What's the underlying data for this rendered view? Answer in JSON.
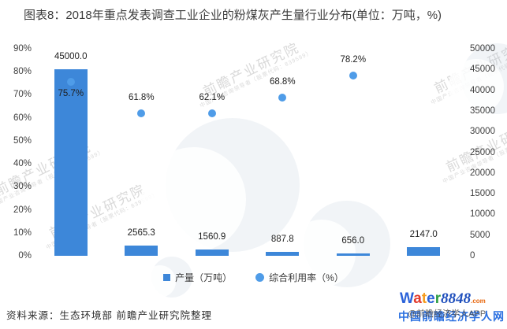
{
  "title": "图表8：2018年重点发表调查工业企业的粉煤灰产生量行业分布(单位：万吨，%)",
  "chart_data": {
    "type": "combo-bar-scatter",
    "categories": [
      "",
      "",
      "",
      "",
      "",
      ""
    ],
    "series": [
      {
        "name": "产量（万吨）",
        "type": "bar",
        "axis": "right",
        "color": "#3d87d9",
        "values": [
          45000.0,
          2565.3,
          1560.9,
          887.8,
          656.0,
          2147.0
        ],
        "labels": [
          "45000.0",
          "2565.3",
          "1560.9",
          "887.8",
          "656.0",
          "2147.0"
        ]
      },
      {
        "name": "综合利用率（%）",
        "type": "scatter",
        "axis": "left",
        "color": "#4f9ce8",
        "values": [
          75.7,
          61.8,
          62.1,
          68.8,
          78.2,
          null
        ],
        "labels": [
          "75.7%",
          "61.8%",
          "62.1%",
          "68.8%",
          "78.2%",
          ""
        ],
        "label_positions": [
          "below",
          "above",
          "above",
          "above",
          "above",
          ""
        ]
      }
    ],
    "left_axis": {
      "min": 0,
      "max": 90,
      "unit": "%",
      "ticks": [
        "0%",
        "10%",
        "20%",
        "30%",
        "40%",
        "50%",
        "60%",
        "70%",
        "80%",
        "90%"
      ]
    },
    "right_axis": {
      "min": 0,
      "max": 50000,
      "ticks": [
        "0",
        "5000",
        "10000",
        "15000",
        "20000",
        "25000",
        "30000",
        "35000",
        "40000",
        "45000",
        "50000"
      ]
    },
    "grid": false,
    "legend_position": "bottom"
  },
  "legend": {
    "items": [
      {
        "label": "产量（万吨）",
        "marker": "square",
        "color": "#3d87d9"
      },
      {
        "label": "综合利用率（%）",
        "marker": "circle",
        "color": "#4f9ce8"
      }
    ]
  },
  "footer": {
    "source": "资料来源：生态环境部 前瞻产业研究院整理"
  },
  "logo": {
    "letters": [
      {
        "ch": "W",
        "color": "#2b62d9"
      },
      {
        "ch": "a",
        "color": "#e23b2e"
      },
      {
        "ch": "t",
        "color": "#f59b1e"
      },
      {
        "ch": "e",
        "color": "#2b62d9"
      },
      {
        "ch": "r",
        "color": "#2e9e44"
      }
    ],
    "number": "8848",
    "number_color": "#1f4fbc",
    "tld": ".com",
    "tld_color": "#e8680f",
    "site_text": "中国前瞻经济学人网",
    "site_color": "#2a6fe0",
    "overlay_text": "@前瞻经济学人APP",
    "overlay_color": "#4a4a4a"
  },
  "watermark": {
    "text": "前瞻产业研究院",
    "subtext": "中国产业咨询领导者（股票代码：839599）"
  }
}
